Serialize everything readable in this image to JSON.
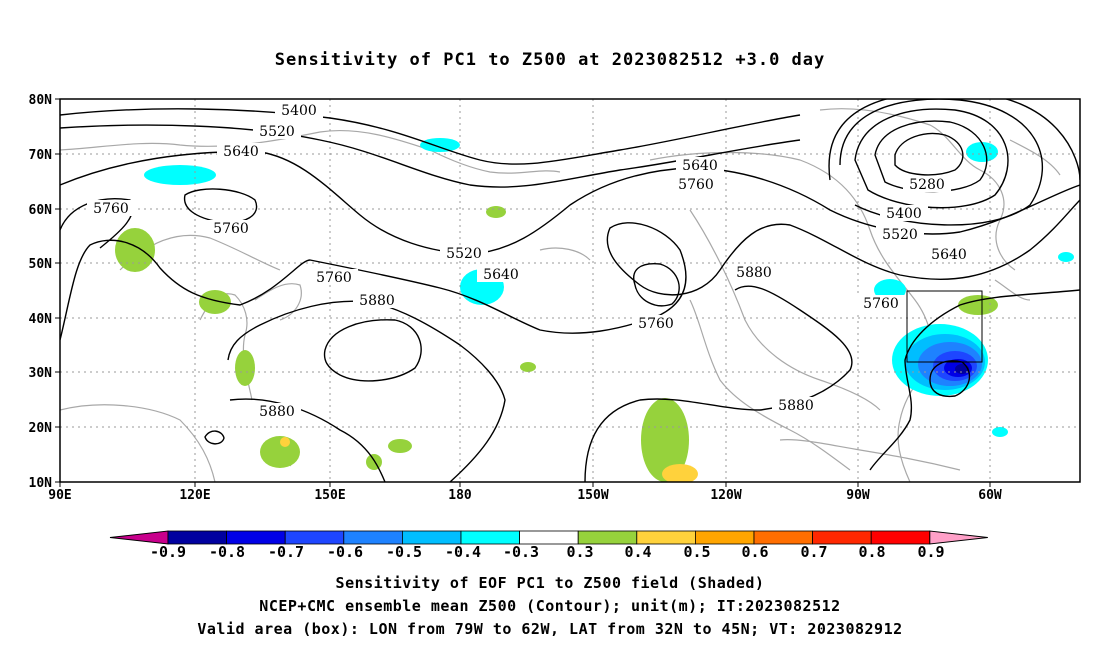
{
  "title": "Sensitivity of PC1 to Z500 at 2023082512 +3.0 day",
  "map": {
    "lon_labels": [
      "90E",
      "120E",
      "150E",
      "180",
      "150W",
      "120W",
      "90W",
      "60W"
    ],
    "lat_labels": [
      "80N",
      "70N",
      "60N",
      "50N",
      "40N",
      "30N",
      "20N",
      "10N"
    ],
    "contour_labels": [
      "5400",
      "5520",
      "5640",
      "5760",
      "5760",
      "5280",
      "5640",
      "5760",
      "5400",
      "5520",
      "5520",
      "5640",
      "5640",
      "5760",
      "5880",
      "5880",
      "5760",
      "5880",
      "5880",
      "5640",
      "5760"
    ]
  },
  "colorbar": {
    "labels": [
      "-0.9",
      "-0.8",
      "-0.7",
      "-0.6",
      "-0.5",
      "-0.4",
      "-0.3",
      "0.3",
      "0.4",
      "0.5",
      "0.6",
      "0.7",
      "0.8",
      "0.9"
    ],
    "colors": [
      "#00009f",
      "#0000e6",
      "#1e46ff",
      "#1e82ff",
      "#00beff",
      "#00ffff",
      "#ffffff",
      "#96d23c",
      "#ffd23c",
      "#ffa500",
      "#ff6e00",
      "#ff2800",
      "#ff0000"
    ],
    "left_end_color": "#c8008c",
    "right_end_color": "#ffa0c8"
  },
  "captions": {
    "line1": "Sensitivity of EOF PC1 to Z500 field (Shaded)",
    "line2": "NCEP+CMC ensemble mean Z500 (Contour); unit(m); IT:2023082512",
    "line3": "Valid area (box): LON from 79W to 62W, LAT from 32N to 45N; VT: 2023082912"
  }
}
